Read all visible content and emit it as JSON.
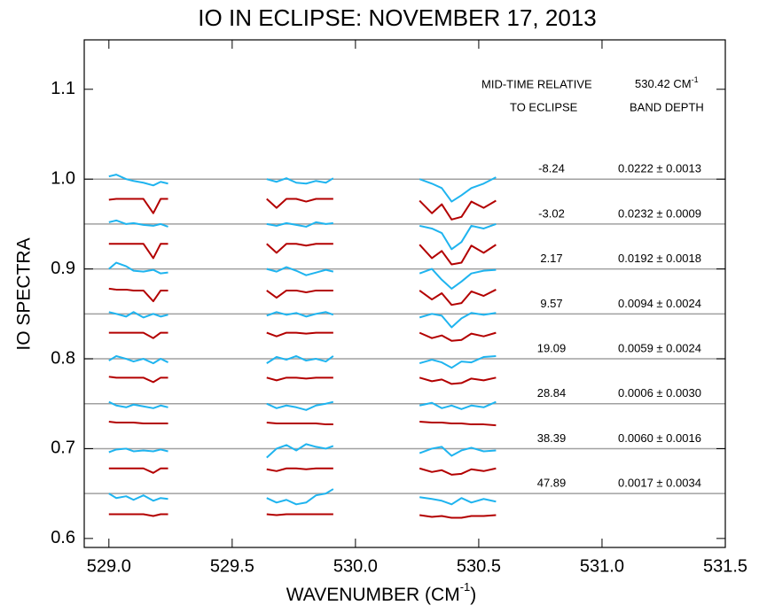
{
  "chart_data": {
    "type": "line",
    "title": "IO IN ECLIPSE: NOVEMBER 17, 2013",
    "xlabel": [
      "WAVENUMBER (CM",
      "-1",
      ")"
    ],
    "ylabel": "IO SPECTRA",
    "xlim": [
      528.9,
      531.5
    ],
    "ylim": [
      0.59,
      1.155
    ],
    "xticks": [
      {
        "value": 529,
        "label": "529.0"
      },
      529.5,
      {
        "value": 530,
        "label": "530.0"
      },
      530.5,
      {
        "value": 531,
        "label": "531.0"
      },
      531.5
    ],
    "yticks": [
      0.6,
      0.7,
      0.8,
      0.9,
      {
        "value": 1,
        "label": "1.0"
      },
      1.1
    ],
    "reference_lines": [
      1,
      0.95,
      0.9,
      0.85,
      0.8,
      0.75,
      0.7,
      0.65
    ],
    "reference_color": "#a0a0a0",
    "annotations": {
      "header": {
        "time_1": "MID-TIME RELATIVE",
        "time_2": "TO ECLIPSE",
        "depth_1": "530.42 CM",
        "depth_1_sup": "-1",
        "depth_2": "BAND DEPTH"
      },
      "rows": [
        {
          "time": "-8.24",
          "depth": "0.0222 ± 0.0013"
        },
        {
          "time": "-3.02",
          "depth": "0.0232 ± 0.0009"
        },
        {
          "time": "2.17",
          "depth": "0.0192 ± 0.0018"
        },
        {
          "time": "9.57",
          "depth": "0.0094 ± 0.0024"
        },
        {
          "time": "19.09",
          "depth": "0.0059 ± 0.0024"
        },
        {
          "time": "28.84",
          "depth": "0.0006 ± 0.0030"
        },
        {
          "time": "38.39",
          "depth": "0.0060 ± 0.0016"
        },
        {
          "time": "47.89",
          "depth": "0.0017 ± 0.0034"
        }
      ]
    },
    "x": [
      529.0,
      529.03,
      529.07,
      529.1,
      529.14,
      529.18,
      529.21,
      529.24,
      529.45,
      529.64,
      529.68,
      529.72,
      529.76,
      529.8,
      529.84,
      529.88,
      529.91,
      530.1,
      530.26,
      530.31,
      530.35,
      530.39,
      530.43,
      530.47,
      530.52,
      530.57
    ],
    "series": [
      {
        "color": "#1fb4ef",
        "values": [
          1.003,
          1.005,
          1.0,
          0.998,
          0.996,
          0.993,
          0.997,
          0.995,
          null,
          1.0,
          0.997,
          1.001,
          0.996,
          0.995,
          0.998,
          0.996,
          1.001,
          null,
          1.0,
          0.995,
          0.99,
          0.975,
          0.982,
          0.99,
          0.995,
          1.002
        ]
      },
      {
        "color": "#b30000",
        "values": [
          0.977,
          0.978,
          0.978,
          0.978,
          0.978,
          0.962,
          0.978,
          0.978,
          null,
          0.978,
          0.968,
          0.978,
          0.978,
          0.975,
          0.978,
          0.978,
          0.978,
          null,
          0.976,
          0.962,
          0.972,
          0.955,
          0.958,
          0.975,
          0.968,
          0.976
        ]
      },
      {
        "color": "#1fb4ef",
        "values": [
          0.952,
          0.954,
          0.95,
          0.951,
          0.949,
          0.948,
          0.95,
          0.947,
          null,
          0.95,
          0.948,
          0.951,
          0.949,
          0.947,
          0.952,
          0.95,
          0.951,
          null,
          0.948,
          0.945,
          0.94,
          0.922,
          0.93,
          0.948,
          0.945,
          0.95
        ]
      },
      {
        "color": "#b30000",
        "values": [
          0.928,
          0.928,
          0.928,
          0.928,
          0.928,
          0.912,
          0.928,
          0.928,
          null,
          0.928,
          0.918,
          0.928,
          0.928,
          0.926,
          0.928,
          0.928,
          0.928,
          null,
          0.927,
          0.912,
          0.92,
          0.905,
          0.907,
          0.926,
          0.918,
          0.927
        ]
      },
      {
        "color": "#1fb4ef",
        "values": [
          0.9,
          0.907,
          0.903,
          0.898,
          0.897,
          0.899,
          0.895,
          0.896,
          null,
          0.9,
          0.897,
          0.902,
          0.898,
          0.893,
          0.896,
          0.899,
          0.897,
          null,
          0.895,
          0.9,
          0.888,
          0.878,
          0.886,
          0.895,
          0.898,
          0.899
        ]
      },
      {
        "color": "#b30000",
        "values": [
          0.878,
          0.877,
          0.877,
          0.876,
          0.876,
          0.864,
          0.876,
          0.876,
          null,
          0.876,
          0.868,
          0.876,
          0.876,
          0.874,
          0.876,
          0.876,
          0.876,
          null,
          0.876,
          0.866,
          0.873,
          0.86,
          0.862,
          0.875,
          0.87,
          0.877
        ]
      },
      {
        "color": "#1fb4ef",
        "values": [
          0.852,
          0.85,
          0.847,
          0.852,
          0.846,
          0.85,
          0.847,
          0.849,
          null,
          0.848,
          0.852,
          0.849,
          0.851,
          0.847,
          0.85,
          0.852,
          0.849,
          null,
          0.846,
          0.85,
          0.848,
          0.835,
          0.845,
          0.851,
          0.849,
          0.851
        ]
      },
      {
        "color": "#b30000",
        "values": [
          0.829,
          0.829,
          0.829,
          0.829,
          0.829,
          0.823,
          0.829,
          0.829,
          null,
          0.829,
          0.825,
          0.829,
          0.829,
          0.828,
          0.829,
          0.829,
          0.829,
          null,
          0.829,
          0.823,
          0.826,
          0.82,
          0.821,
          0.828,
          0.825,
          0.829
        ]
      },
      {
        "color": "#1fb4ef",
        "values": [
          0.798,
          0.803,
          0.8,
          0.797,
          0.8,
          0.795,
          0.8,
          0.796,
          null,
          0.795,
          0.802,
          0.799,
          0.803,
          0.798,
          0.8,
          0.797,
          0.803,
          null,
          0.795,
          0.799,
          0.796,
          0.79,
          0.797,
          0.796,
          0.802,
          0.803
        ]
      },
      {
        "color": "#b30000",
        "values": [
          0.78,
          0.779,
          0.779,
          0.779,
          0.779,
          0.774,
          0.779,
          0.779,
          null,
          0.779,
          0.776,
          0.779,
          0.779,
          0.778,
          0.779,
          0.779,
          0.779,
          null,
          0.779,
          0.775,
          0.777,
          0.772,
          0.773,
          0.778,
          0.776,
          0.779
        ]
      },
      {
        "color": "#1fb4ef",
        "values": [
          0.752,
          0.748,
          0.746,
          0.749,
          0.747,
          0.745,
          0.748,
          0.746,
          null,
          0.75,
          0.745,
          0.748,
          0.746,
          0.743,
          0.748,
          0.75,
          0.752,
          null,
          0.748,
          0.751,
          0.745,
          0.748,
          0.744,
          0.748,
          0.746,
          0.752
        ]
      },
      {
        "color": "#b30000",
        "values": [
          0.73,
          0.729,
          0.729,
          0.729,
          0.728,
          0.728,
          0.728,
          0.728,
          null,
          0.729,
          0.728,
          0.728,
          0.728,
          0.728,
          0.728,
          0.727,
          0.727,
          null,
          0.73,
          0.729,
          0.729,
          0.728,
          0.728,
          0.727,
          0.727,
          0.726
        ]
      },
      {
        "color": "#1fb4ef",
        "values": [
          0.696,
          0.699,
          0.7,
          0.697,
          0.698,
          0.697,
          0.699,
          0.697,
          null,
          0.69,
          0.7,
          0.704,
          0.698,
          0.705,
          0.702,
          0.7,
          0.703,
          null,
          0.695,
          0.7,
          0.702,
          0.692,
          0.698,
          0.701,
          0.697,
          0.698
        ]
      },
      {
        "color": "#b30000",
        "values": [
          0.678,
          0.678,
          0.678,
          0.678,
          0.678,
          0.673,
          0.678,
          0.678,
          null,
          0.677,
          0.675,
          0.678,
          0.678,
          0.677,
          0.678,
          0.678,
          0.678,
          null,
          0.678,
          0.674,
          0.676,
          0.671,
          0.672,
          0.677,
          0.675,
          0.678
        ]
      },
      {
        "color": "#1fb4ef",
        "values": [
          0.65,
          0.645,
          0.647,
          0.643,
          0.648,
          0.642,
          0.645,
          0.644,
          null,
          0.645,
          0.64,
          0.643,
          0.638,
          0.64,
          0.648,
          0.65,
          0.655,
          null,
          0.646,
          0.644,
          0.642,
          0.638,
          0.645,
          0.64,
          0.644,
          0.641
        ]
      },
      {
        "color": "#b30000",
        "values": [
          0.627,
          0.627,
          0.627,
          0.627,
          0.627,
          0.625,
          0.627,
          0.627,
          null,
          0.627,
          0.626,
          0.627,
          0.627,
          0.627,
          0.627,
          0.627,
          0.627,
          null,
          0.626,
          0.624,
          0.625,
          0.623,
          0.623,
          0.625,
          0.625,
          0.626
        ]
      }
    ]
  }
}
